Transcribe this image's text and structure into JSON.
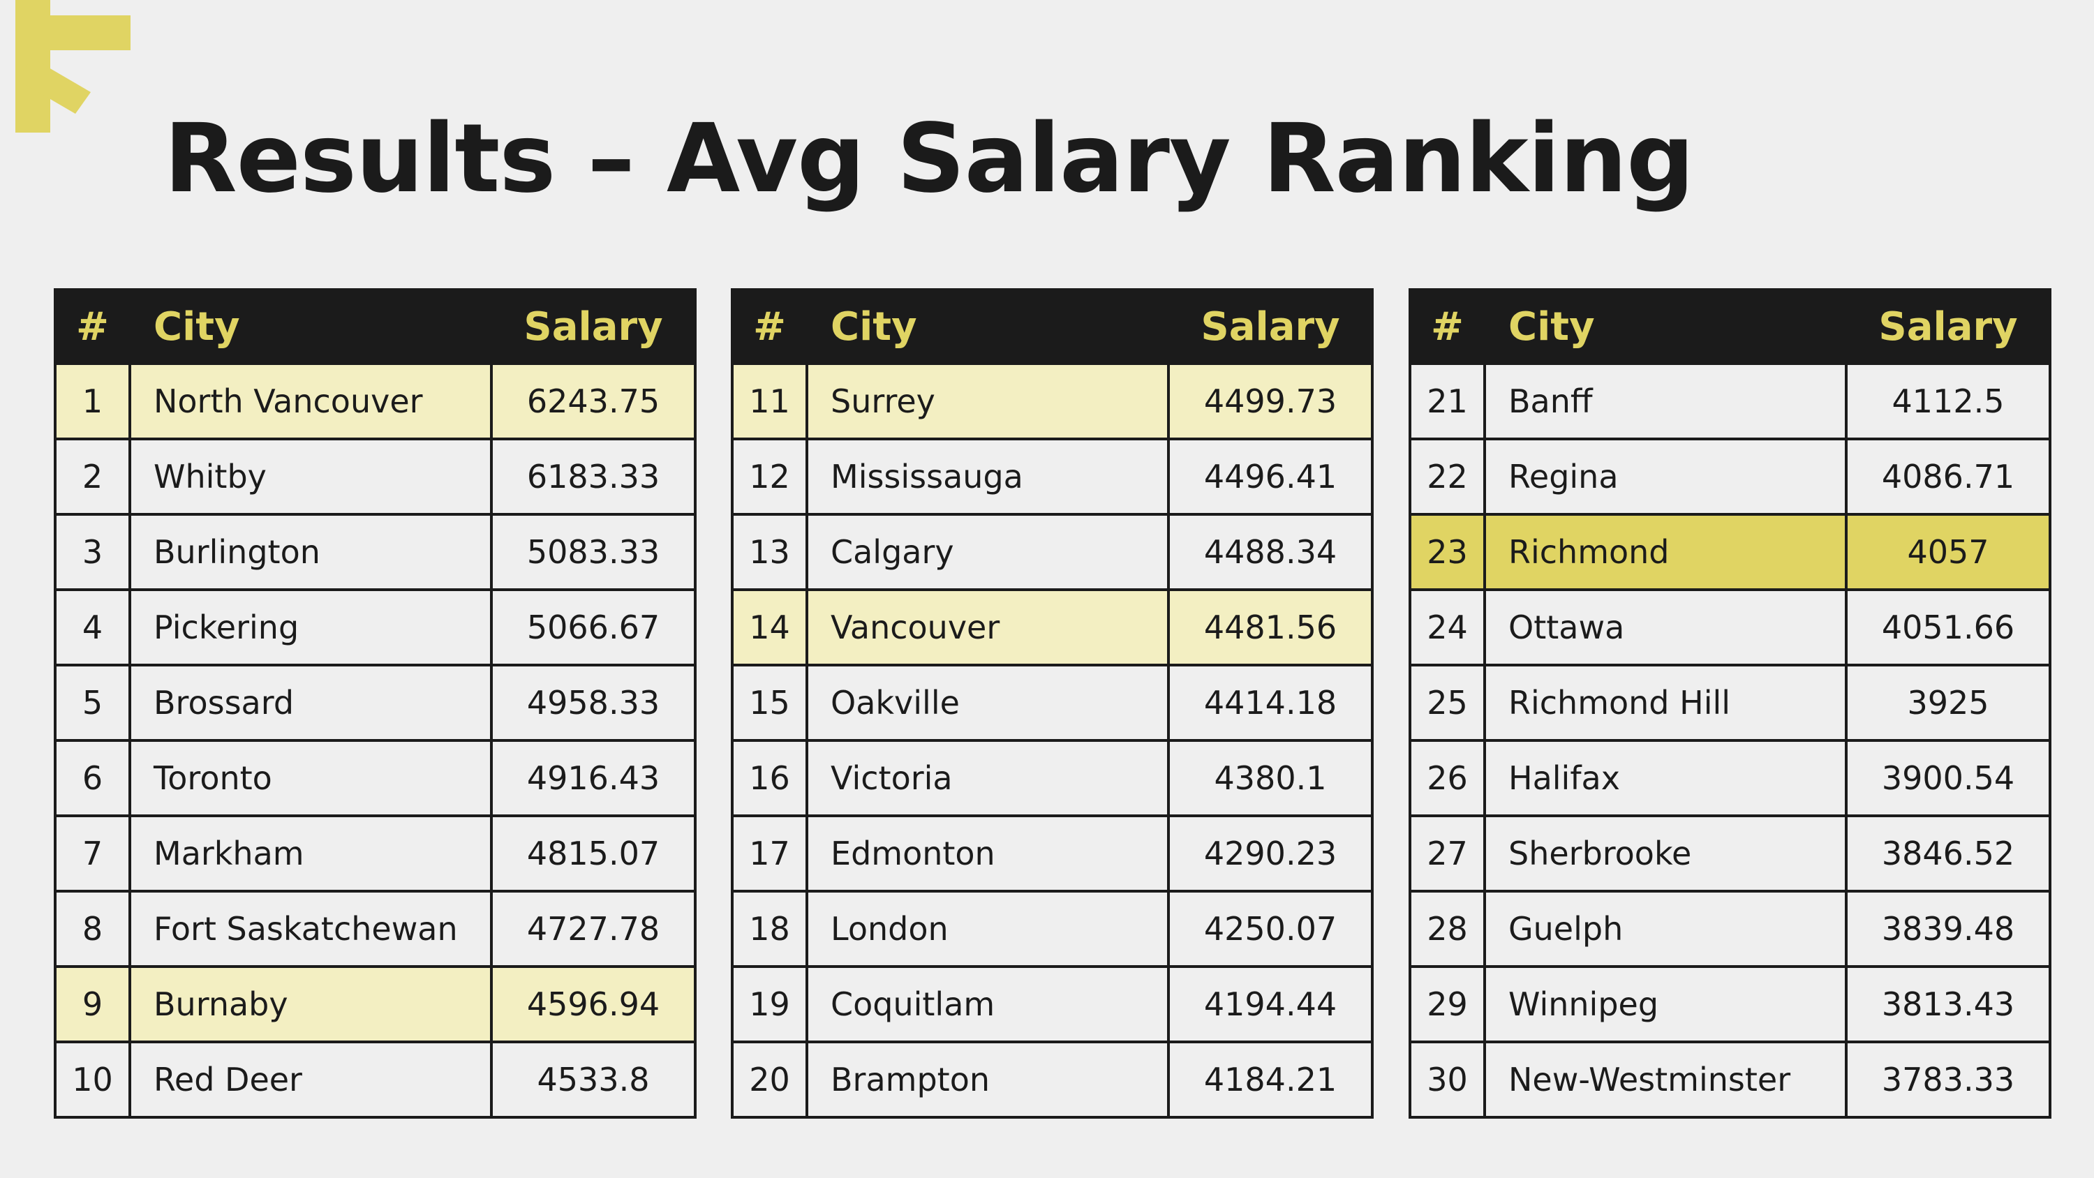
{
  "title": "Results – Avg Salary Ranking",
  "colors": {
    "background": "#efefef",
    "header_bg": "#1b1b1b",
    "header_text": "#e0d463",
    "accent": "#e0d463",
    "highlight_light": "#f3efc2",
    "highlight_strong": "#e0d463",
    "text": "#1b1b1b"
  },
  "decoration": {
    "icon": "asterisk-burst-icon",
    "color": "#e0d463"
  },
  "columns": {
    "num": "#",
    "city": "City",
    "salary": "Salary"
  },
  "tables": [
    {
      "rows": [
        {
          "num": "1",
          "city": "North Vancouver",
          "salary": "6243.75",
          "highlight": "light"
        },
        {
          "num": "2",
          "city": "Whitby",
          "salary": "6183.33",
          "highlight": "none"
        },
        {
          "num": "3",
          "city": "Burlington",
          "salary": "5083.33",
          "highlight": "none"
        },
        {
          "num": "4",
          "city": "Pickering",
          "salary": "5066.67",
          "highlight": "none"
        },
        {
          "num": "5",
          "city": "Brossard",
          "salary": "4958.33",
          "highlight": "none"
        },
        {
          "num": "6",
          "city": "Toronto",
          "salary": "4916.43",
          "highlight": "none"
        },
        {
          "num": "7",
          "city": "Markham",
          "salary": "4815.07",
          "highlight": "none"
        },
        {
          "num": "8",
          "city": "Fort Saskatchewan",
          "salary": "4727.78",
          "highlight": "none"
        },
        {
          "num": "9",
          "city": "Burnaby",
          "salary": "4596.94",
          "highlight": "light"
        },
        {
          "num": "10",
          "city": "Red Deer",
          "salary": "4533.8",
          "highlight": "none"
        }
      ]
    },
    {
      "rows": [
        {
          "num": "11",
          "city": "Surrey",
          "salary": "4499.73",
          "highlight": "light"
        },
        {
          "num": "12",
          "city": "Mississauga",
          "salary": "4496.41",
          "highlight": "none"
        },
        {
          "num": "13",
          "city": "Calgary",
          "salary": "4488.34",
          "highlight": "none"
        },
        {
          "num": "14",
          "city": "Vancouver",
          "salary": "4481.56",
          "highlight": "light"
        },
        {
          "num": "15",
          "city": "Oakville",
          "salary": "4414.18",
          "highlight": "none"
        },
        {
          "num": "16",
          "city": "Victoria",
          "salary": "4380.1",
          "highlight": "none"
        },
        {
          "num": "17",
          "city": "Edmonton",
          "salary": "4290.23",
          "highlight": "none"
        },
        {
          "num": "18",
          "city": "London",
          "salary": "4250.07",
          "highlight": "none"
        },
        {
          "num": "19",
          "city": "Coquitlam",
          "salary": "4194.44",
          "highlight": "none"
        },
        {
          "num": "20",
          "city": "Brampton",
          "salary": "4184.21",
          "highlight": "none"
        }
      ]
    },
    {
      "rows": [
        {
          "num": "21",
          "city": "Banff",
          "salary": "4112.5",
          "highlight": "none"
        },
        {
          "num": "22",
          "city": "Regina",
          "salary": "4086.71",
          "highlight": "none"
        },
        {
          "num": "23",
          "city": "Richmond",
          "salary": "4057",
          "highlight": "strong"
        },
        {
          "num": "24",
          "city": "Ottawa",
          "salary": "4051.66",
          "highlight": "none"
        },
        {
          "num": "25",
          "city": "Richmond Hill",
          "salary": "3925",
          "highlight": "none"
        },
        {
          "num": "26",
          "city": "Halifax",
          "salary": "3900.54",
          "highlight": "none"
        },
        {
          "num": "27",
          "city": "Sherbrooke",
          "salary": "3846.52",
          "highlight": "none"
        },
        {
          "num": "28",
          "city": "Guelph",
          "salary": "3839.48",
          "highlight": "none"
        },
        {
          "num": "29",
          "city": "Winnipeg",
          "salary": "3813.43",
          "highlight": "none"
        },
        {
          "num": "30",
          "city": "New-Westminster",
          "salary": "3783.33",
          "highlight": "none"
        }
      ]
    }
  ]
}
